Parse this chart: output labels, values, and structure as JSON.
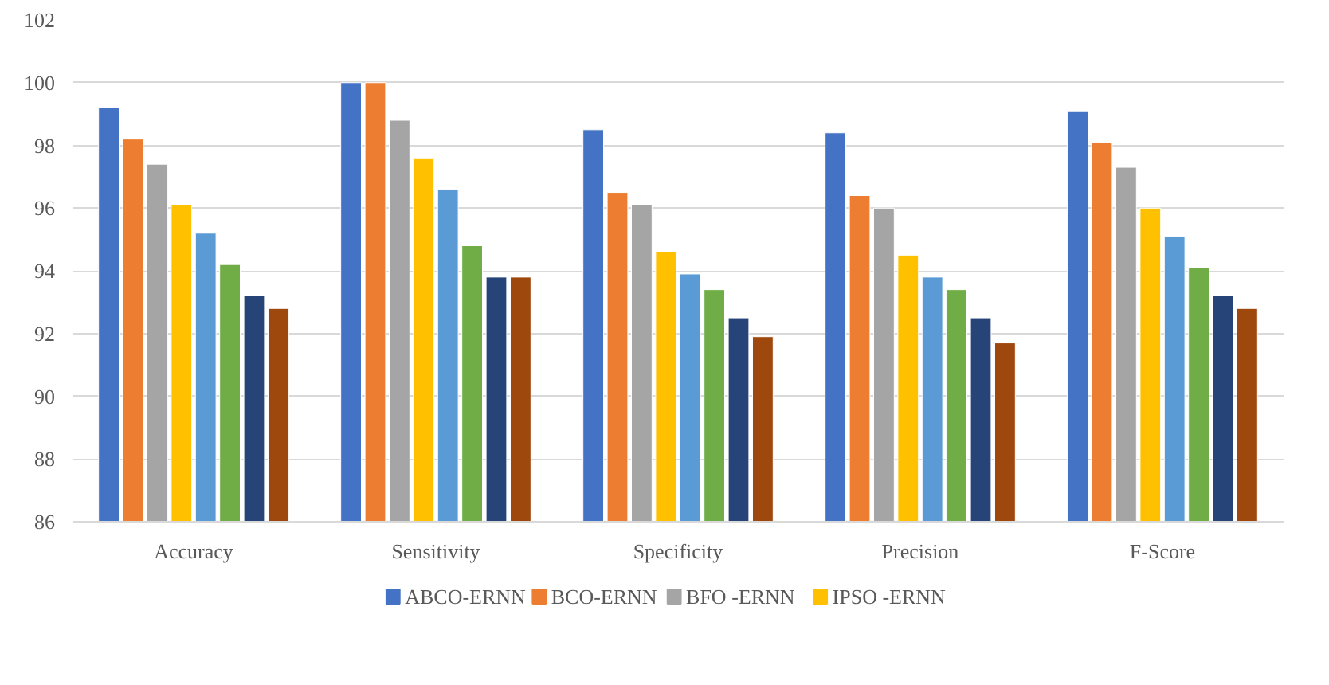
{
  "chart_data": {
    "type": "bar",
    "categories": [
      "Accuracy",
      "Sensitivity",
      "Specificity",
      "Precision",
      "F-Score"
    ],
    "ylim": [
      86,
      102
    ],
    "yticks": [
      86,
      88,
      90,
      92,
      94,
      96,
      98,
      100,
      102
    ],
    "grid": "y",
    "legend": "bottom",
    "series": [
      {
        "name": "ABCO-ERNN",
        "color": "#4472c4",
        "values": [
          99.2,
          100,
          98.5,
          98.4,
          99.1
        ]
      },
      {
        "name": "BCO-ERNN",
        "color": "#ed7d31",
        "values": [
          98.2,
          100,
          96.5,
          96.4,
          98.1
        ]
      },
      {
        "name": "BFO -ERNN",
        "color": "#a5a5a5",
        "values": [
          97.4,
          98.8,
          96.1,
          96.0,
          97.3
        ]
      },
      {
        "name": "IPSO -ERNN",
        "color": "#ffc000",
        "values": [
          96.1,
          97.6,
          94.6,
          94.5,
          96.0
        ]
      },
      {
        "color": "#5b9bd5",
        "values": [
          95.2,
          96.6,
          93.9,
          93.8,
          95.1
        ]
      },
      {
        "color": "#70ad47",
        "values": [
          94.2,
          94.8,
          93.4,
          93.4,
          94.1
        ]
      },
      {
        "color": "#264478",
        "values": [
          93.2,
          93.8,
          92.5,
          92.5,
          93.2
        ]
      },
      {
        "color": "#9e480e",
        "values": [
          92.8,
          93.8,
          91.9,
          91.7,
          92.8
        ]
      }
    ]
  }
}
